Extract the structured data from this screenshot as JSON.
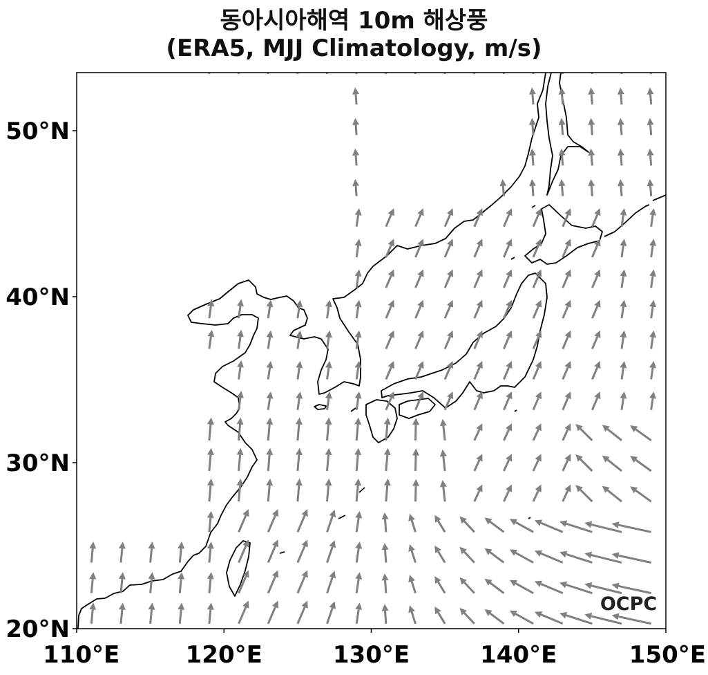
{
  "title": {
    "line1": "동아시아해역 10m 해상풍",
    "line2": "(ERA5, MJJ Climatology, m/s)"
  },
  "logo": "OCPC",
  "chart_data": {
    "type": "vector-field-map",
    "projection": "PlateCarree",
    "extent": {
      "lon": [
        110,
        150
      ],
      "lat": [
        20,
        53.5
      ]
    },
    "x_ticks": [
      {
        "value": 110,
        "label": "110°E"
      },
      {
        "value": 120,
        "label": "120°E"
      },
      {
        "value": 130,
        "label": "130°E"
      },
      {
        "value": 140,
        "label": "140°E"
      },
      {
        "value": 150,
        "label": "150°E"
      }
    ],
    "y_ticks": [
      {
        "value": 20,
        "label": "20°N"
      },
      {
        "value": 30,
        "label": "30°N"
      },
      {
        "value": 40,
        "label": "40°N"
      },
      {
        "value": 50,
        "label": "50°N"
      }
    ],
    "vector_grid": {
      "lon_start": 111,
      "lon_step": 2,
      "lat_start": 20.3,
      "lat_step": 1.84
    },
    "vector_color": "#808080",
    "coast_color": "#000000",
    "grid": false
  }
}
